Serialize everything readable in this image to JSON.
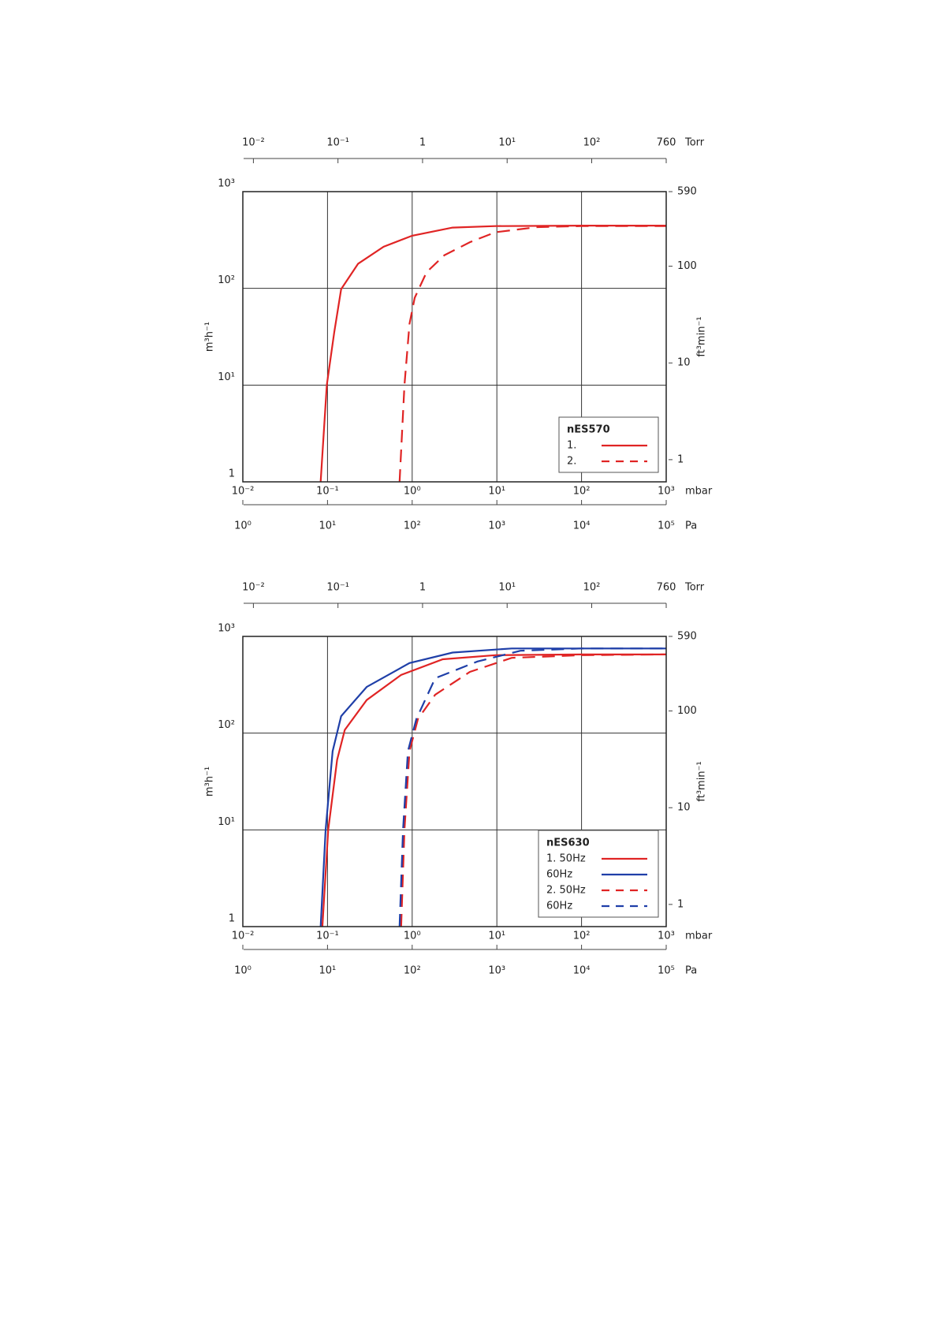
{
  "chart_data": [
    {
      "type": "line",
      "log_x": true,
      "log_y": true,
      "grid": true,
      "legend": "lower right",
      "legend_title": "nES570",
      "xlabel": "mbar",
      "xlim": [
        0.01,
        1000
      ],
      "xticks": [
        {
          "value": 0.01,
          "label": "10⁻²"
        },
        {
          "value": 0.1,
          "label": "10⁻¹"
        },
        {
          "value": 1,
          "label": "10⁰"
        },
        {
          "value": 10,
          "label": "10¹"
        },
        {
          "value": 100,
          "label": "10²"
        },
        {
          "value": 1000,
          "label": "10³"
        }
      ],
      "x2label": "Torr",
      "x2lim": [
        0.0075,
        760
      ],
      "x2ticks": [
        {
          "value": 0.01,
          "label": "10⁻²"
        },
        {
          "value": 0.1,
          "label": "10⁻¹"
        },
        1,
        {
          "value": 10,
          "label": "10¹"
        },
        {
          "value": 100,
          "label": "10²"
        },
        760
      ],
      "x3label": "Pa",
      "x3lim": [
        1,
        100000
      ],
      "x3ticks": [
        {
          "value": 1,
          "label": "10⁰"
        },
        {
          "value": 10,
          "label": "10¹"
        },
        {
          "value": 100,
          "label": "10²"
        },
        {
          "value": 1000,
          "label": "10³"
        },
        {
          "value": 10000,
          "label": "10⁴"
        },
        {
          "value": 100000,
          "label": "10⁵"
        }
      ],
      "ylabel": "m³h⁻¹",
      "ylim": [
        1,
        1000
      ],
      "yticks": [
        1,
        {
          "value": 10,
          "label": "10¹"
        },
        {
          "value": 100,
          "label": "10²"
        },
        {
          "value": 1000,
          "label": "10³"
        }
      ],
      "y2label": "ft³min⁻¹",
      "y2lim": [
        0.59,
        590
      ],
      "y2ticks": [
        1,
        10,
        100,
        590
      ],
      "series": [
        {
          "name": "1.",
          "color": "#e02424",
          "dashed": false,
          "x": [
            0.083,
            0.098,
            0.12,
            0.145,
            0.23,
            0.46,
            1.0,
            3.0,
            9.6,
            100,
            1000
          ],
          "values": [
            1,
            10,
            35,
            98,
            180,
            270,
            350,
            425,
            440,
            445,
            445
          ]
        },
        {
          "name": "2.",
          "color": "#e02424",
          "dashed": true,
          "x": [
            0.71,
            0.81,
            0.93,
            1.07,
            1.48,
            2.4,
            4.8,
            9.6,
            30,
            100,
            1000
          ],
          "values": [
            1,
            10,
            43,
            80,
            147,
            220,
            300,
            380,
            430,
            440,
            440
          ]
        }
      ]
    },
    {
      "type": "line",
      "log_x": true,
      "log_y": true,
      "grid": true,
      "legend": "lower right",
      "legend_title": "nES630",
      "xlabel": "mbar",
      "xlim": [
        0.01,
        1000
      ],
      "xticks": [
        {
          "value": 0.01,
          "label": "10⁻²"
        },
        {
          "value": 0.1,
          "label": "10⁻¹"
        },
        {
          "value": 1,
          "label": "10⁰"
        },
        {
          "value": 10,
          "label": "10¹"
        },
        {
          "value": 100,
          "label": "10²"
        },
        {
          "value": 1000,
          "label": "10³"
        }
      ],
      "x2label": "Torr",
      "x2lim": [
        0.0075,
        760
      ],
      "x2ticks": [
        {
          "value": 0.01,
          "label": "10⁻²"
        },
        {
          "value": 0.1,
          "label": "10⁻¹"
        },
        1,
        {
          "value": 10,
          "label": "10¹"
        },
        {
          "value": 100,
          "label": "10²"
        },
        760
      ],
      "x3label": "Pa",
      "x3lim": [
        1,
        100000
      ],
      "x3ticks": [
        {
          "value": 1,
          "label": "10⁰"
        },
        {
          "value": 10,
          "label": "10¹"
        },
        {
          "value": 100,
          "label": "10²"
        },
        {
          "value": 1000,
          "label": "10³"
        },
        {
          "value": 10000,
          "label": "10⁴"
        },
        {
          "value": 100000,
          "label": "10⁵"
        }
      ],
      "ylabel": "m³h⁻¹",
      "ylim": [
        1,
        1000
      ],
      "yticks": [
        1,
        {
          "value": 10,
          "label": "10¹"
        },
        {
          "value": 100,
          "label": "10²"
        },
        {
          "value": 1000,
          "label": "10³"
        }
      ],
      "y2label": "ft³min⁻¹",
      "y2lim": [
        0.59,
        590
      ],
      "y2ticks": [
        1,
        10,
        100,
        590
      ],
      "series": [
        {
          "name": "1. 50Hz",
          "color": "#e02424",
          "dashed": false,
          "x": [
            0.087,
            0.102,
            0.13,
            0.16,
            0.29,
            0.74,
            2.3,
            9.6,
            100,
            1000
          ],
          "values": [
            1,
            10,
            53,
            108,
            220,
            400,
            580,
            640,
            650,
            650
          ]
        },
        {
          "name": "60Hz",
          "color": "#1f3fa8",
          "dashed": false,
          "x": [
            0.083,
            0.095,
            0.115,
            0.145,
            0.29,
            0.93,
            3.0,
            15,
            100,
            1000
          ],
          "values": [
            1,
            10,
            65,
            150,
            300,
            530,
            680,
            750,
            750,
            750
          ]
        },
        {
          "name": "2. 50Hz",
          "color": "#e02424",
          "dashed": true,
          "x": [
            0.74,
            0.81,
            0.93,
            1.17,
            1.87,
            4.8,
            15,
            100,
            1000
          ],
          "values": [
            1,
            10,
            65,
            140,
            250,
            430,
            600,
            640,
            650
          ]
        },
        {
          "name": "60Hz",
          "color": "#1f3fa8",
          "dashed": true,
          "x": [
            0.71,
            0.78,
            0.89,
            1.12,
            1.87,
            5.9,
            19,
            100,
            1000
          ],
          "values": [
            1,
            10,
            65,
            140,
            370,
            550,
            710,
            750,
            750
          ]
        }
      ]
    }
  ]
}
